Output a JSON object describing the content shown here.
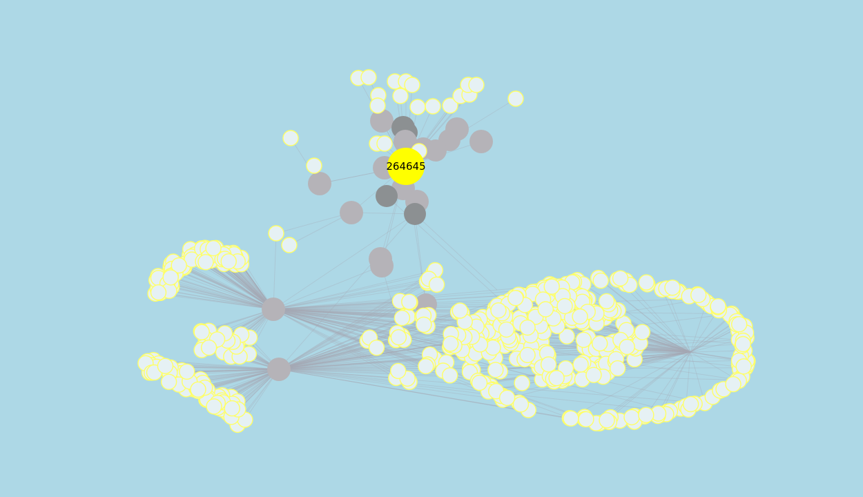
{
  "graph": {
    "focus_node": {
      "label": "264645",
      "color": "#ffff00"
    },
    "colors": {
      "background": "#add8e6",
      "leaf_fill": "#e6f1f4",
      "leaf_stroke": "#ffff66",
      "hub": "#b5b3b8",
      "hub_dark": "#8c9092",
      "edge": "#a6a9b4"
    }
  }
}
